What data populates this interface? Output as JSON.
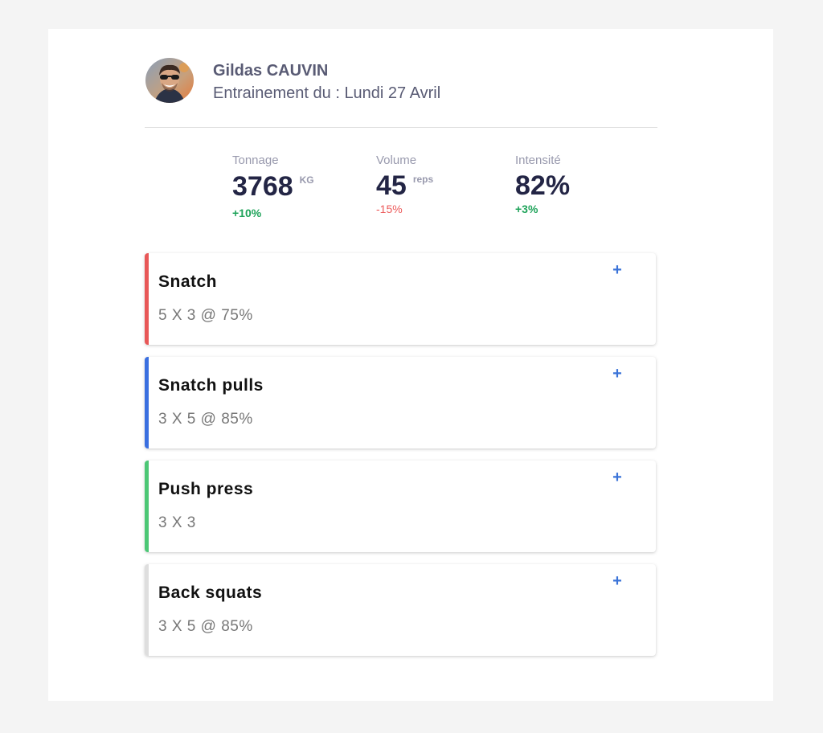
{
  "user": {
    "name": "Gildas CAUVIN",
    "session_prefix": "Entrainement du : ",
    "session_date": "Lundi 27 Avril"
  },
  "stats": {
    "tonnage": {
      "label": "Tonnage",
      "value": "3768",
      "unit": "KG",
      "delta": "+10%",
      "trend": "up"
    },
    "volume": {
      "label": "Volume",
      "value": "45",
      "unit": "reps",
      "delta": "-15%",
      "trend": "down"
    },
    "intensity": {
      "label": "Intensité",
      "value": "82%",
      "unit": "",
      "delta": "+3%",
      "trend": "up"
    }
  },
  "exercises": [
    {
      "name": "Snatch",
      "scheme": "5 X 3 @ 75%",
      "accent": "#e85757",
      "add_label": "+"
    },
    {
      "name": "Snatch pulls",
      "scheme": "3 X 5 @ 85%",
      "accent": "#3a6fe0",
      "add_label": "+"
    },
    {
      "name": "Push press",
      "scheme": "3 X 3",
      "accent": "#4cc775",
      "add_label": "+"
    },
    {
      "name": "Back squats",
      "scheme": "3 X 5 @ 85%",
      "accent": "#dedede",
      "add_label": "+"
    }
  ],
  "colors": {
    "accent_blue": "#3a73d8",
    "positive": "#1fa35a",
    "negative": "#ec5a5a",
    "text_dark": "#232545",
    "text_muted": "#9899ad"
  }
}
